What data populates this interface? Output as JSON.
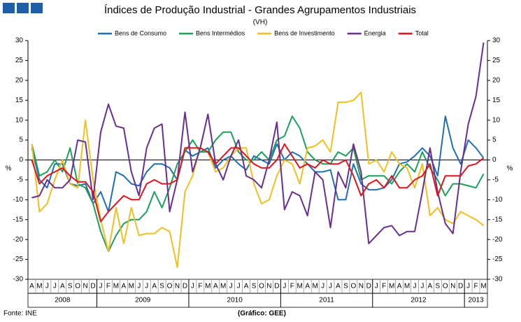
{
  "chart_data": {
    "type": "line",
    "title": "Índices de Produção Industrial - Grandes Agrupamentos Industriais",
    "subtitle": "(VH)",
    "ylabel": "%",
    "y2label": "%",
    "source": "Fonte: INE",
    "credit": "(Gráfico: GEE)",
    "categories": [
      "A",
      "M",
      "J",
      "J",
      "A",
      "S",
      "O",
      "N",
      "D",
      "J",
      "F",
      "M",
      "A",
      "M",
      "J",
      "J",
      "A",
      "S",
      "O",
      "N",
      "D",
      "J",
      "F",
      "M",
      "A",
      "M",
      "J",
      "J",
      "A",
      "S",
      "O",
      "N",
      "D",
      "J",
      "F",
      "M",
      "A",
      "M",
      "J",
      "J",
      "A",
      "S",
      "O",
      "N",
      "D",
      "J",
      "F",
      "M",
      "A",
      "M",
      "J",
      "J",
      "A",
      "S",
      "O",
      "N",
      "D",
      "J",
      "F",
      "M"
    ],
    "years": [
      {
        "label": "2008",
        "months": 9
      },
      {
        "label": "2009",
        "months": 12
      },
      {
        "label": "2010",
        "months": 12
      },
      {
        "label": "2011",
        "months": 12
      },
      {
        "label": "2012",
        "months": 12
      },
      {
        "label": "2013",
        "months": 3
      }
    ],
    "ylim": [
      -30,
      30
    ],
    "yticks": [
      -30,
      -25,
      -20,
      -15,
      -10,
      -5,
      0,
      5,
      10,
      15,
      20,
      25,
      30
    ],
    "y2lim": [
      -30,
      30
    ],
    "y2ticks": [
      -30,
      -25,
      -20,
      -15,
      -10,
      -5,
      0,
      5,
      10,
      15,
      20,
      25,
      30
    ],
    "series": [
      {
        "name": "Bens de Consumo",
        "color": "#1f6fb5",
        "values": [
          3,
          -5,
          -7,
          -1,
          -1,
          -6,
          -6.5,
          -6,
          -11,
          -8,
          -13,
          -3,
          -4,
          -6,
          -6.5,
          -3,
          -1,
          -1,
          -2,
          -5,
          2.5,
          1,
          2,
          3,
          -2,
          0,
          1,
          -1,
          -2.5,
          1,
          0,
          -1,
          4,
          0,
          2,
          1,
          -1,
          -3,
          -3,
          -2.5,
          -10,
          -10,
          -1,
          -6,
          -7.5,
          -7.5,
          -7,
          -5,
          -1,
          -0.5,
          1,
          3,
          1,
          -4,
          11,
          3,
          -1,
          5,
          3,
          0.5
        ]
      },
      {
        "name": "Bens Intermédios",
        "color": "#1aa05a",
        "values": [
          4,
          -4,
          -3,
          0,
          -3,
          3,
          -6,
          -7,
          -11,
          -18,
          -23,
          -19,
          -16,
          -15,
          -15,
          -13,
          -8,
          -12,
          -7,
          -1,
          2,
          5,
          2,
          2,
          5,
          7,
          7,
          2,
          0,
          0,
          2,
          0,
          5,
          6,
          11,
          8,
          2,
          0,
          -1,
          -1,
          2,
          1,
          3,
          -5,
          -4,
          -4,
          -4,
          -6,
          -3,
          -1,
          -3,
          2,
          -2,
          -5,
          -9,
          -6,
          -6,
          -6.5,
          -7,
          -3.5
        ]
      },
      {
        "name": "Bens de Investimento",
        "color": "#f0c020",
        "values": [
          4,
          -13,
          -11,
          -5,
          0,
          -6,
          -7,
          10,
          -5,
          -15,
          -23,
          -12,
          -21,
          -12,
          -19,
          -18.5,
          -18.5,
          -17,
          -18,
          -27,
          -8,
          -4,
          3,
          2,
          -3,
          -2,
          1,
          3,
          3,
          -6,
          -11,
          -10,
          -4,
          0,
          -1,
          -6,
          3,
          3.5,
          5,
          2,
          14.5,
          14.5,
          15,
          17,
          -1,
          0,
          -3,
          2,
          -1,
          -2,
          -7,
          -1,
          -14,
          -12,
          -15,
          -16,
          -13,
          -14,
          -15,
          -16.5
        ]
      },
      {
        "name": "Energia",
        "color": "#6a2e8f",
        "values": [
          -9.5,
          -9,
          -5,
          -7,
          -7,
          -5,
          5,
          4.5,
          -10,
          7,
          14,
          8.5,
          8,
          -3,
          -9,
          3,
          8,
          9,
          -13,
          -5,
          12,
          -3,
          3,
          11.5,
          -1,
          -5,
          1,
          5,
          -4,
          -5,
          -7,
          0,
          9.5,
          -12.5,
          -8,
          -9,
          -14,
          -3,
          -5,
          -17,
          -3,
          -7,
          4,
          -3,
          -21,
          -19,
          -17,
          -16.5,
          -19,
          -18,
          -18,
          -8,
          3,
          -8,
          -16,
          -18.5,
          -3,
          9,
          16,
          29.5
        ]
      },
      {
        "name": "Total",
        "color": "#e0141c",
        "values": [
          0,
          -6,
          -4,
          -3,
          -2,
          -4,
          -5.5,
          -5.5,
          -8,
          -15.5,
          -13,
          -11,
          -9,
          -10,
          -10,
          -6,
          -5,
          -6,
          -6,
          -5,
          3,
          3,
          3,
          2,
          -1,
          1,
          3,
          3,
          1,
          -1,
          -2,
          -2,
          0,
          4,
          1,
          -2,
          -1,
          -2,
          0,
          -1,
          -1,
          0,
          -4,
          -9,
          -6,
          -5,
          -7,
          -4,
          -7,
          -7,
          -5,
          -4,
          -1,
          -9,
          -4,
          -4,
          -4,
          -1.5,
          -1,
          0.5
        ]
      }
    ]
  }
}
